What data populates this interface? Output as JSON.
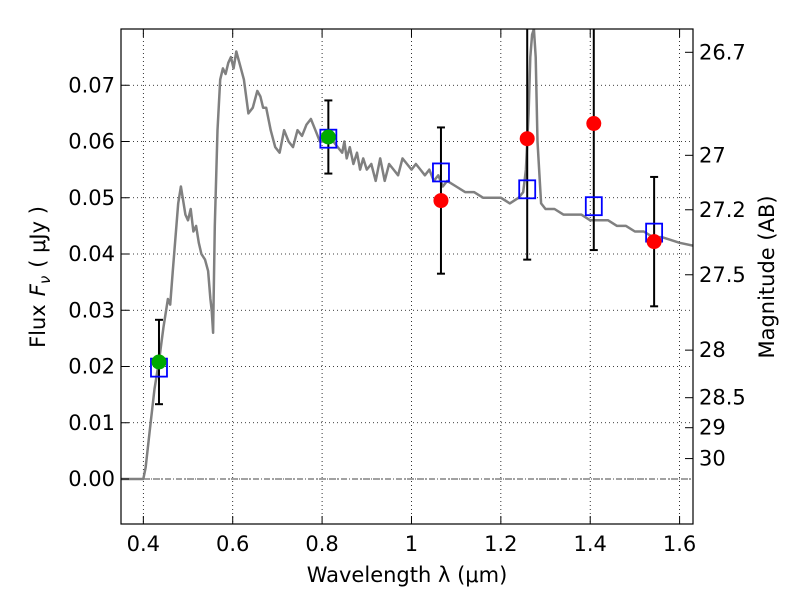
{
  "chart_data": {
    "type": "scatter",
    "xlabel": "Wavelength  λ (μm)",
    "ylabel": "Flux  F_ν  ( μJy )",
    "ylabel_parts": {
      "prefix": "Flux",
      "symbol": "F",
      "sub": "ν",
      "unit": "( μJy )"
    },
    "y2label": "Magnitude (AB)",
    "xlim": [
      0.35,
      1.63
    ],
    "ylim": [
      -0.008,
      0.08
    ],
    "grid": true,
    "x_ticks": [
      0.4,
      0.6,
      0.8,
      1.0,
      1.2,
      1.4,
      1.6
    ],
    "x_tick_labels": [
      "0.4",
      "0.6",
      "0.8",
      "1",
      "1.2",
      "1.4",
      "1.6"
    ],
    "y_ticks": [
      0.0,
      0.01,
      0.02,
      0.03,
      0.04,
      0.05,
      0.06,
      0.07
    ],
    "y_tick_labels": [
      "0.00",
      "0.01",
      "0.02",
      "0.03",
      "0.04",
      "0.05",
      "0.06",
      "0.07"
    ],
    "mag_ticks": [
      26.7,
      27,
      27.2,
      27.5,
      28,
      28.5,
      29,
      30
    ],
    "mag_tick_labels": [
      "26.7",
      "27",
      "27.2",
      "27.5",
      "28",
      "28.5",
      "29",
      "30"
    ],
    "colors": {
      "sed": "#808080",
      "model_box": "#0000ff",
      "detection": "#00aa00",
      "upper_point": "#ff0000",
      "errorbar": "#000000",
      "zero_line": "#444444"
    },
    "sed_model": {
      "x": [
        0.35,
        0.39,
        0.4,
        0.405,
        0.415,
        0.425,
        0.435,
        0.445,
        0.455,
        0.46,
        0.466,
        0.472,
        0.478,
        0.484,
        0.488,
        0.494,
        0.5,
        0.506,
        0.512,
        0.518,
        0.524,
        0.53,
        0.538,
        0.545,
        0.55,
        0.553,
        0.556,
        0.56,
        0.566,
        0.572,
        0.578,
        0.584,
        0.59,
        0.596,
        0.602,
        0.608,
        0.615,
        0.625,
        0.635,
        0.645,
        0.655,
        0.662,
        0.668,
        0.675,
        0.685,
        0.695,
        0.705,
        0.715,
        0.725,
        0.735,
        0.745,
        0.755,
        0.765,
        0.775,
        0.785,
        0.795,
        0.805,
        0.815,
        0.825,
        0.835,
        0.845,
        0.85,
        0.855,
        0.862,
        0.87,
        0.878,
        0.885,
        0.892,
        0.9,
        0.91,
        0.92,
        0.93,
        0.94,
        0.95,
        0.96,
        0.97,
        0.98,
        0.99,
        1.0,
        1.01,
        1.02,
        1.03,
        1.04,
        1.05,
        1.06,
        1.07,
        1.08,
        1.1,
        1.12,
        1.14,
        1.16,
        1.18,
        1.2,
        1.22,
        1.24,
        1.25,
        1.256,
        1.262,
        1.266,
        1.27,
        1.274,
        1.278,
        1.282,
        1.29,
        1.3,
        1.32,
        1.34,
        1.36,
        1.38,
        1.4,
        1.42,
        1.44,
        1.46,
        1.48,
        1.5,
        1.52,
        1.54,
        1.56,
        1.58,
        1.6,
        1.63
      ],
      "y": [
        0.0,
        0.0,
        0.0,
        0.002,
        0.009,
        0.016,
        0.021,
        0.027,
        0.032,
        0.031,
        0.037,
        0.043,
        0.049,
        0.052,
        0.05,
        0.047,
        0.046,
        0.048,
        0.044,
        0.045,
        0.042,
        0.04,
        0.039,
        0.037,
        0.032,
        0.03,
        0.026,
        0.045,
        0.062,
        0.071,
        0.073,
        0.072,
        0.074,
        0.075,
        0.073,
        0.076,
        0.074,
        0.071,
        0.065,
        0.066,
        0.069,
        0.068,
        0.066,
        0.066,
        0.062,
        0.059,
        0.058,
        0.062,
        0.06,
        0.059,
        0.062,
        0.061,
        0.063,
        0.064,
        0.062,
        0.06,
        0.06,
        0.061,
        0.06,
        0.059,
        0.058,
        0.06,
        0.057,
        0.059,
        0.056,
        0.058,
        0.055,
        0.057,
        0.055,
        0.056,
        0.053,
        0.057,
        0.053,
        0.056,
        0.055,
        0.054,
        0.057,
        0.056,
        0.055,
        0.056,
        0.055,
        0.054,
        0.055,
        0.053,
        0.054,
        0.052,
        0.053,
        0.052,
        0.051,
        0.051,
        0.05,
        0.05,
        0.05,
        0.049,
        0.05,
        0.051,
        0.055,
        0.065,
        0.075,
        0.079,
        0.08,
        0.075,
        0.06,
        0.049,
        0.048,
        0.048,
        0.047,
        0.047,
        0.047,
        0.046,
        0.046,
        0.046,
        0.045,
        0.045,
        0.044,
        0.044,
        0.043,
        0.043,
        0.0425,
        0.042,
        0.0415
      ]
    },
    "model_flux": {
      "x": [
        0.435,
        0.814,
        1.066,
        1.259,
        1.408,
        1.543
      ],
      "y": [
        0.0198,
        0.0605,
        0.0545,
        0.0515,
        0.0485,
        0.0438
      ]
    },
    "detections": {
      "x": [
        0.435,
        0.814
      ],
      "y": [
        0.0208,
        0.0608
      ],
      "yerr": [
        0.0075,
        0.0065
      ]
    },
    "upper_points": {
      "x": [
        1.066,
        1.259,
        1.408,
        1.543
      ],
      "y": [
        0.0495,
        0.0605,
        0.0632,
        0.0422
      ],
      "yerr": [
        0.013,
        0.0215,
        0.0225,
        0.0115
      ]
    }
  }
}
